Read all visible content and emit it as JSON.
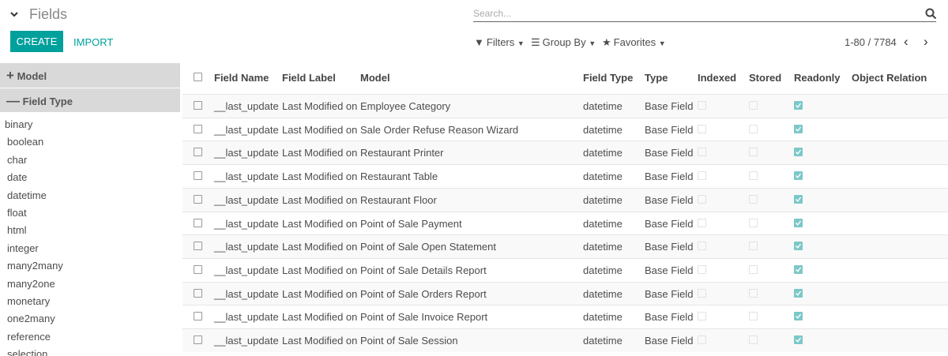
{
  "header": {
    "title": "Fields",
    "search_placeholder": "Search...",
    "create": "CREATE",
    "import": "IMPORT",
    "filters": "Filters",
    "group_by": "Group By",
    "favorites": "Favorites",
    "pager": "1-80 / 7784"
  },
  "sidebar": {
    "sections": [
      "Model",
      "Field Type"
    ],
    "field_types": [
      "binary",
      "boolean",
      "char",
      "date",
      "datetime",
      "float",
      "html",
      "integer",
      "many2many",
      "many2one",
      "monetary",
      "one2many",
      "reference",
      "selection"
    ]
  },
  "table": {
    "columns": [
      "Field Name",
      "Field Label",
      "Model",
      "Field Type",
      "Type",
      "Indexed",
      "Stored",
      "Readonly",
      "Object Relation"
    ],
    "rows": [
      [
        "__last_update",
        "Last Modified on",
        "Employee Category",
        "datetime",
        "Base Field",
        false,
        false,
        true
      ],
      [
        "__last_update",
        "Last Modified on",
        "Sale Order Refuse Reason Wizard",
        "datetime",
        "Base Field",
        false,
        false,
        true
      ],
      [
        "__last_update",
        "Last Modified on",
        "Restaurant Printer",
        "datetime",
        "Base Field",
        false,
        false,
        true
      ],
      [
        "__last_update",
        "Last Modified on",
        "Restaurant Table",
        "datetime",
        "Base Field",
        false,
        false,
        true
      ],
      [
        "__last_update",
        "Last Modified on",
        "Restaurant Floor",
        "datetime",
        "Base Field",
        false,
        false,
        true
      ],
      [
        "__last_update",
        "Last Modified on",
        "Point of Sale Payment",
        "datetime",
        "Base Field",
        false,
        false,
        true
      ],
      [
        "__last_update",
        "Last Modified on",
        "Point of Sale Open Statement",
        "datetime",
        "Base Field",
        false,
        false,
        true
      ],
      [
        "__last_update",
        "Last Modified on",
        "Point of Sale Details Report",
        "datetime",
        "Base Field",
        false,
        false,
        true
      ],
      [
        "__last_update",
        "Last Modified on",
        "Point of Sale Orders Report",
        "datetime",
        "Base Field",
        false,
        false,
        true
      ],
      [
        "__last_update",
        "Last Modified on",
        "Point of Sale Invoice Report",
        "datetime",
        "Base Field",
        false,
        false,
        true
      ],
      [
        "__last_update",
        "Last Modified on",
        "Point of Sale Session",
        "datetime",
        "Base Field",
        false,
        false,
        true
      ]
    ]
  }
}
